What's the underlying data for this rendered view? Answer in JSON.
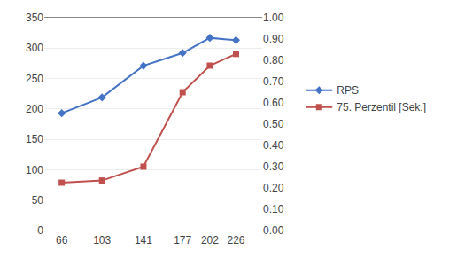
{
  "chart_data": {
    "type": "line",
    "x": [
      66,
      103,
      141,
      177,
      202,
      226
    ],
    "xlim": [
      50,
      250
    ],
    "xticks": [
      66,
      103,
      141,
      177,
      202,
      226
    ],
    "ylim": [
      0,
      350
    ],
    "yticks": [
      0,
      50,
      100,
      150,
      200,
      250,
      300,
      350
    ],
    "y2lim": [
      0,
      1
    ],
    "y2ticks": [
      {
        "value": 0,
        "label": "0.00"
      },
      {
        "value": 0.1,
        "label": "0.10"
      },
      {
        "value": 0.2,
        "label": "0.20"
      },
      {
        "value": 0.3,
        "label": "0.30"
      },
      {
        "value": 0.4,
        "label": "0.40"
      },
      {
        "value": 0.5,
        "label": "0.50"
      },
      {
        "value": 0.6,
        "label": "0.60"
      },
      {
        "value": 0.7,
        "label": "0.70"
      },
      {
        "value": 0.8,
        "label": "0.80"
      },
      {
        "value": 0.9,
        "label": "0.90"
      },
      {
        "value": 1,
        "label": "1.00"
      }
    ],
    "grid": true,
    "legend": "right",
    "series": [
      {
        "name": "RPS",
        "color": "#4472C4",
        "marker": "diamond",
        "values": [
          193,
          219,
          271,
          292,
          317,
          313
        ]
      },
      {
        "name": "75. Perzentil [Sek.]",
        "color": "#C0504D",
        "marker": "square",
        "axis": "y2",
        "values": [
          0.225,
          0.235,
          0.3,
          0.65,
          0.775,
          0.83
        ]
      }
    ]
  }
}
